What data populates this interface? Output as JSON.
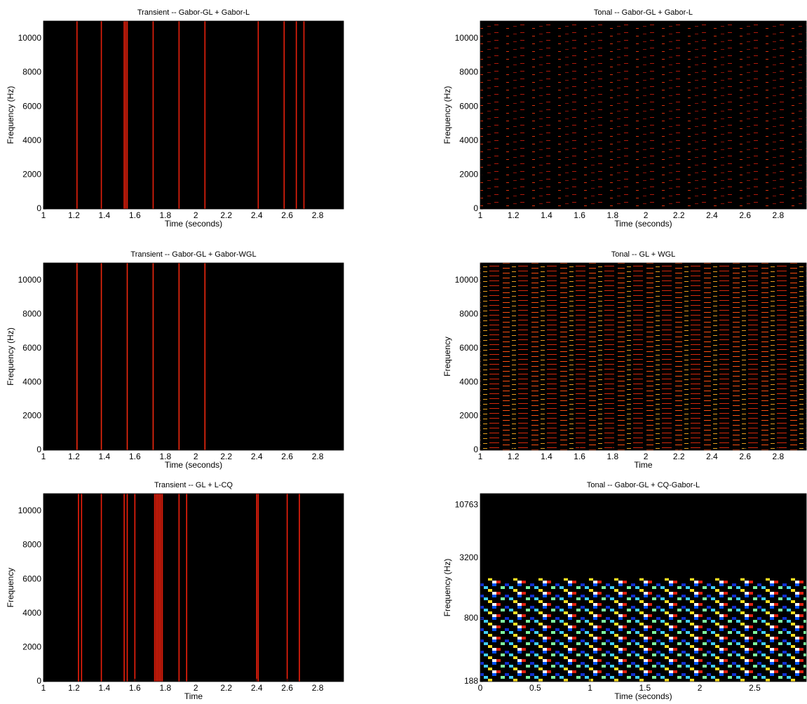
{
  "chart_data": [
    {
      "type": "spectrogram",
      "title": "Transient -- Gabor-GL + Gabor-L",
      "xlabel": "Time (seconds)",
      "ylabel": "Frequency (Hz)",
      "colormap": "hot",
      "line_color": "#e8200c",
      "x": [
        1.22,
        1.38,
        1.53,
        1.54,
        1.55,
        1.72,
        1.89,
        2.06,
        2.41,
        2.58,
        2.66,
        2.71
      ],
      "xlim": [
        1,
        2.97
      ],
      "xticks": [
        1,
        1.2,
        1.4,
        1.6,
        1.8,
        2,
        2.2,
        2.4,
        2.6,
        2.8
      ],
      "ylim": [
        0,
        11025
      ],
      "yticks": [
        0,
        2000,
        4000,
        6000,
        8000,
        10000
      ]
    },
    {
      "type": "spectrogram",
      "title": "Tonal -- Gabor-GL + Gabor-L",
      "xlabel": "Time (seconds)",
      "ylabel": "Frequency (Hz)",
      "colormap": "hot",
      "texture": "sparse",
      "xlim": [
        1,
        2.97
      ],
      "xticks": [
        1,
        1.2,
        1.4,
        1.6,
        1.8,
        2,
        2.2,
        2.4,
        2.6,
        2.8
      ],
      "ylim": [
        0,
        11025
      ],
      "yticks": [
        0,
        2000,
        4000,
        6000,
        8000,
        10000
      ]
    },
    {
      "type": "spectrogram",
      "title": "Transient -- Gabor-GL + Gabor-WGL",
      "xlabel": "Time (seconds)",
      "ylabel": "Frequency (Hz)",
      "colormap": "hot",
      "line_color": "#f0280e",
      "x": [
        1.22,
        1.38,
        1.55,
        1.72,
        1.89,
        2.06
      ],
      "xlim": [
        1,
        2.97
      ],
      "xticks": [
        1,
        1.2,
        1.4,
        1.6,
        1.8,
        2,
        2.2,
        2.4,
        2.6,
        2.8
      ],
      "ylim": [
        0,
        11025
      ],
      "yticks": [
        0,
        2000,
        4000,
        6000,
        8000,
        10000
      ]
    },
    {
      "type": "spectrogram",
      "title": "Tonal -- GL + WGL",
      "xlabel": "Time",
      "ylabel": "Frequency",
      "colormap": "hot",
      "texture": "dense",
      "xlim": [
        1,
        2.97
      ],
      "xticks": [
        1,
        1.2,
        1.4,
        1.6,
        1.8,
        2,
        2.2,
        2.4,
        2.6,
        2.8
      ],
      "ylim": [
        0,
        11025
      ],
      "yticks": [
        0,
        2000,
        4000,
        6000,
        8000,
        10000
      ]
    },
    {
      "type": "spectrogram",
      "title": "Transient -- GL + L-CQ",
      "xlabel": "Time",
      "ylabel": "Frequency",
      "colormap": "hot",
      "line_color": "#f0200c",
      "x": [
        1.23,
        1.25,
        1.38,
        1.53,
        1.55,
        1.6,
        1.73,
        1.74,
        1.75,
        1.76,
        1.77,
        1.78,
        1.89,
        1.94,
        2.4,
        2.41,
        2.6,
        2.68
      ],
      "xlim": [
        1,
        2.97
      ],
      "xticks": [
        1,
        1.2,
        1.4,
        1.6,
        1.8,
        2,
        2.2,
        2.4,
        2.6,
        2.8
      ],
      "ylim": [
        0,
        11025
      ],
      "yticks": [
        0,
        2000,
        4000,
        6000,
        8000,
        10000
      ]
    },
    {
      "type": "spectrogram",
      "title": "Tonal -- Gabor-GL + CQ-Gabor-L",
      "xlabel": "Time (seconds)",
      "ylabel": "Frequency (Hz)",
      "colormap": "jet",
      "yscale": "log",
      "xlim": [
        0,
        2.97
      ],
      "xticks": [
        0,
        0.5,
        1,
        1.5,
        2,
        2.5
      ],
      "ylim": [
        188,
        14000
      ],
      "yticks": [
        188,
        800,
        3200,
        10763
      ]
    }
  ]
}
